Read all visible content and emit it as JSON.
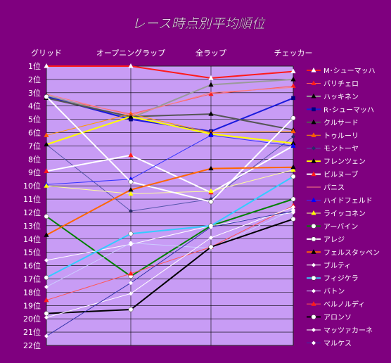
{
  "chart_data": {
    "type": "line",
    "title": "レース時点別平均順位",
    "categories": [
      "グリッド",
      "オープニングラップ",
      "全ラップ",
      "チェッカー"
    ],
    "y_ticks": [
      "1位",
      "2位",
      "3位",
      "4位",
      "5位",
      "6位",
      "7位",
      "8位",
      "9位",
      "10位",
      "11位",
      "12位",
      "13位",
      "14位",
      "15位",
      "16位",
      "17位",
      "18位",
      "19位",
      "20位",
      "21位",
      "22位"
    ],
    "ylim": [
      1,
      22
    ],
    "y_reversed": true,
    "grid": true,
    "legend_position": "right",
    "plot_background": "#c89cf5",
    "series": [
      {
        "name": "M･シューマッハ",
        "color": "#ff1a1a",
        "width": 2,
        "marker": "triangle",
        "marker_color": "#ffffff",
        "values": [
          1.0,
          1.0,
          1.9,
          1.4
        ]
      },
      {
        "name": "バリチェロ",
        "color": "#ff5a5a",
        "width": 1,
        "marker": "triangle",
        "marker_color": "#ff1a1a",
        "values": [
          3.3,
          4.6,
          3.1,
          2.5
        ]
      },
      {
        "name": "ハッキネン",
        "color": "#9a9a9a",
        "width": 2,
        "marker": "triangle",
        "marker_color": "#000000",
        "values": [
          3.2,
          4.9,
          2.4,
          2.0
        ]
      },
      {
        "name": "R･シューマッハ",
        "color": "#1a1adc",
        "width": 2,
        "marker": "square",
        "marker_color": "#000080",
        "values": [
          3.3,
          5.0,
          5.9,
          3.4
        ]
      },
      {
        "name": "クルサード",
        "color": "#555555",
        "width": 2,
        "marker": "triangle",
        "marker_color": "#000000",
        "values": [
          3.4,
          4.8,
          4.6,
          5.8
        ]
      },
      {
        "name": "トゥルーリ",
        "color": "#ff9900",
        "width": 1,
        "marker": "triangle",
        "marker_color": "#ff5a00",
        "values": [
          6.2,
          4.6,
          6.0,
          5.9
        ]
      },
      {
        "name": "モントーヤ",
        "color": "#5555aa",
        "width": 1,
        "marker": "diamond",
        "marker_color": "#2a2a6a",
        "values": [
          6.9,
          11.9,
          11.0,
          6.3
        ]
      },
      {
        "name": "フレンツェン",
        "color": "#ffff00",
        "width": 2,
        "marker": "triangle",
        "marker_color": "#000000",
        "values": [
          6.9,
          4.8,
          6.1,
          6.8
        ]
      },
      {
        "name": "ビルヌーブ",
        "color": "#ffffff",
        "width": 2,
        "marker": "triangle",
        "marker_color": "#ff1a1a",
        "values": [
          8.9,
          7.7,
          10.5,
          7.0
        ]
      },
      {
        "name": "パニス",
        "color": "#ff8080",
        "width": 1,
        "marker": "none",
        "marker_color": "#ff8080",
        "values": [
          3.1,
          4.7,
          3.0,
          2.6
        ]
      },
      {
        "name": "ハイドフェルド",
        "color": "#3333ff",
        "width": 1,
        "marker": "triangle",
        "marker_color": "#0000ff",
        "values": [
          9.9,
          9.5,
          6.2,
          7.0
        ]
      },
      {
        "name": "ライッコネン",
        "color": "#ffff99",
        "width": 1,
        "marker": "triangle",
        "marker_color": "#ffff00",
        "values": [
          10.0,
          10.6,
          10.4,
          8.8
        ]
      },
      {
        "name": "アーバイン",
        "color": "#008000",
        "width": 2,
        "marker": "circle",
        "marker_color": "#ffffff",
        "values": [
          12.3,
          16.8,
          13.0,
          11.0
        ]
      },
      {
        "name": "アレジ",
        "color": "#ffffff",
        "width": 2,
        "marker": "circle",
        "marker_color": "#ffffff",
        "values": [
          3.3,
          9.7,
          11.2,
          4.9
        ]
      },
      {
        "name": "フェルスタッペン",
        "color": "#ff6600",
        "width": 2,
        "marker": "triangle",
        "marker_color": "#000000",
        "values": [
          13.7,
          10.3,
          8.7,
          8.6
        ]
      },
      {
        "name": "ブルティ",
        "color": "#ffffff",
        "width": 1,
        "marker": "diamond",
        "marker_color": "#ffffff",
        "values": [
          15.6,
          14.4,
          13.0,
          12.0
        ]
      },
      {
        "name": "フィジケラ",
        "color": "#33ccff",
        "width": 2,
        "marker": "circle",
        "marker_color": "#ffffff",
        "values": [
          16.9,
          13.6,
          13.0,
          9.3
        ]
      },
      {
        "name": "バトン",
        "color": "#ccccff",
        "width": 1,
        "marker": "diamond",
        "marker_color": "#ffffff",
        "values": [
          17.6,
          14.3,
          14.7,
          11.8
        ]
      },
      {
        "name": "ベルノルディ",
        "color": "#ff5555",
        "width": 1,
        "marker": "triangle",
        "marker_color": "#ff1a1a",
        "values": [
          18.6,
          16.6,
          14.6,
          11.5
        ]
      },
      {
        "name": "アロンソ",
        "color": "#000000",
        "width": 2,
        "marker": "circle",
        "marker_color": "#ffffff",
        "values": [
          19.6,
          19.3,
          14.6,
          12.5
        ]
      },
      {
        "name": "マッツァカーネ",
        "color": "#ffffff",
        "width": 1,
        "marker": "diamond",
        "marker_color": "#ffffff",
        "values": [
          19.9,
          18.1,
          13.9,
          11.6
        ]
      },
      {
        "name": "マルケス",
        "color": "#3333aa",
        "width": 1,
        "marker": "diamond",
        "marker_color": "#ffffff",
        "values": [
          21.3,
          17.3,
          13.1,
          11.9
        ]
      }
    ]
  }
}
